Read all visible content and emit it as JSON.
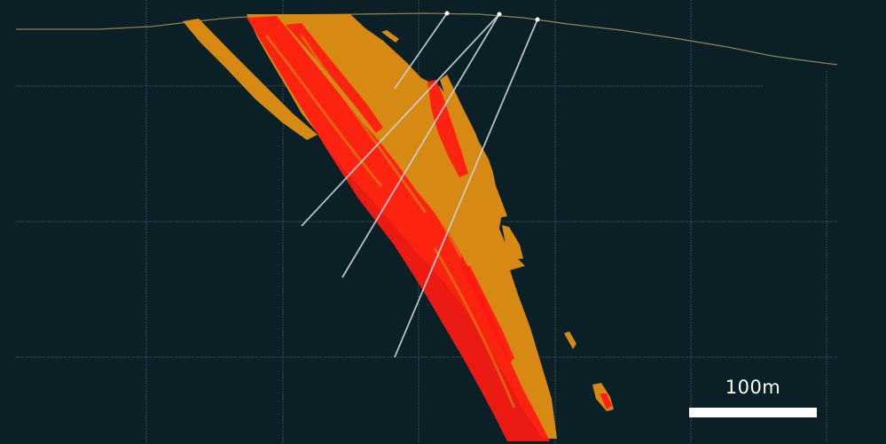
{
  "scale_bar": {
    "label": "100m"
  },
  "colors": {
    "background": "#0b1f27",
    "grid": "#3b5560",
    "terrain": "#8c8450",
    "halo_zone": "#d68a14",
    "high_grade_zone": "#ff1a10",
    "drill_hole": "#c9d3d8",
    "collar": "#ffffff",
    "scale": "#ffffff"
  },
  "icons": {
    "drill_collar": "collar-dot-icon"
  }
}
